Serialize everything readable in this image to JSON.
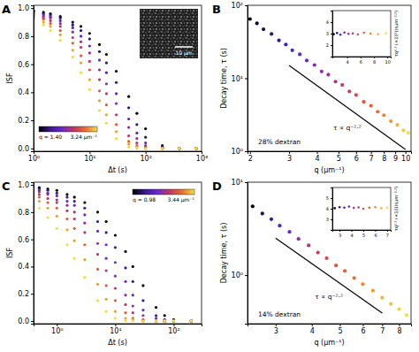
{
  "chart_data": [
    {
      "type": "scatter",
      "panel": "A",
      "log": "x",
      "xlabel": "Δt (s)",
      "ylabel": "ISF",
      "x": [
        1,
        1.5,
        2,
        3,
        5,
        7,
        10,
        15,
        20,
        30,
        50,
        70,
        100,
        200,
        400,
        800
      ],
      "series": [
        {
          "color": "#000000",
          "values": [
            0.98,
            0.97,
            0.96,
            0.94,
            0.9,
            0.87,
            0.82,
            0.74,
            0.67,
            0.55,
            0.37,
            0.25,
            0.14,
            0.02,
            0,
            0
          ]
        },
        {
          "color": "#2a1870",
          "values": [
            0.98,
            0.96,
            0.95,
            0.93,
            0.88,
            0.84,
            0.78,
            0.69,
            0.61,
            0.47,
            0.29,
            0.17,
            0.08,
            0.01,
            0,
            0
          ]
        },
        {
          "color": "#5a28c0",
          "values": [
            0.97,
            0.95,
            0.94,
            0.91,
            0.86,
            0.8,
            0.73,
            0.63,
            0.54,
            0.39,
            0.21,
            0.11,
            0.04,
            0,
            0,
            0
          ]
        },
        {
          "color": "#8a30a0",
          "values": [
            0.96,
            0.94,
            0.93,
            0.89,
            0.83,
            0.76,
            0.68,
            0.56,
            0.46,
            0.32,
            0.15,
            0.07,
            0.02,
            0,
            0,
            0
          ]
        },
        {
          "color": "#c03860",
          "values": [
            0.95,
            0.93,
            0.91,
            0.87,
            0.79,
            0.72,
            0.62,
            0.49,
            0.39,
            0.24,
            0.09,
            0.04,
            0.01,
            0,
            0,
            0
          ]
        },
        {
          "color": "#e05a30",
          "values": [
            0.94,
            0.92,
            0.89,
            0.84,
            0.75,
            0.66,
            0.56,
            0.41,
            0.31,
            0.17,
            0.05,
            0.02,
            0,
            0,
            0,
            0
          ]
        },
        {
          "color": "#eba030",
          "values": [
            0.93,
            0.9,
            0.87,
            0.81,
            0.7,
            0.61,
            0.49,
            0.34,
            0.24,
            0.12,
            0.03,
            0.01,
            0,
            0,
            0,
            0
          ]
        },
        {
          "color": "#f0dc40",
          "values": [
            0.92,
            0.88,
            0.84,
            0.77,
            0.65,
            0.54,
            0.42,
            0.27,
            0.18,
            0.07,
            0.01,
            0,
            0,
            0,
            0,
            0
          ]
        }
      ],
      "xlim": [
        1,
        1000
      ],
      "xticks": [
        {
          "value": 1,
          "label": "10⁰"
        },
        {
          "value": 10,
          "label": "10¹"
        },
        {
          "value": 100,
          "label": "10²"
        },
        {
          "value": 1000,
          "label": "10³"
        }
      ],
      "ylim": [
        -0.02,
        1.02
      ],
      "yticks": [
        {
          "value": 0,
          "label": "0.0"
        },
        0.2,
        0.4,
        0.6,
        0.8,
        {
          "value": 1,
          "label": "1.0"
        }
      ],
      "colorbar": {
        "min": 1.4,
        "max": 3.24,
        "min_label": "q = 1.40",
        "max_label": "3.24 μm⁻¹",
        "colors": [
          "#000000",
          "#3a1a90",
          "#6a2ad0",
          "#c03860",
          "#e87030",
          "#f0e040"
        ]
      },
      "inset_image": {
        "scale_bar_label": "10 μm"
      }
    },
    {
      "type": "scatter",
      "panel": "B",
      "log": true,
      "xlabel": "q (μm⁻¹)",
      "ylabel": "Decay time, τ (s)",
      "x": [
        2.0,
        2.15,
        2.3,
        2.5,
        2.7,
        2.9,
        3.1,
        3.35,
        3.6,
        3.9,
        4.2,
        4.5,
        4.85,
        5.2,
        5.6,
        6.0,
        6.5,
        7.0,
        7.5,
        8.0,
        8.6,
        9.2,
        9.8,
        10.3
      ],
      "values": [
        64.9,
        56.5,
        47.0,
        40.5,
        33.0,
        29.0,
        24.2,
        21.3,
        17.5,
        15.2,
        12.4,
        11.2,
        9.0,
        8.1,
        6.6,
        5.9,
        4.75,
        4.2,
        3.48,
        3.12,
        2.58,
        2.3,
        1.93,
        1.78
      ],
      "colors": [
        "#000000",
        "#100830",
        "#1c1050",
        "#281870",
        "#341c90",
        "#4020b0",
        "#4c24c8",
        "#5a28d0",
        "#6a2cc0",
        "#7a30b0",
        "#8a30a0",
        "#9a3490",
        "#aa3880",
        "#ba3c70",
        "#ca4060",
        "#d84850",
        "#e05440",
        "#e46034",
        "#e87030",
        "#ec8430",
        "#ee9a34",
        "#f0b438",
        "#f0cc3c",
        "#f0e040"
      ],
      "xlim": [
        1.95,
        10.6
      ],
      "xticks": [
        2,
        3,
        4,
        5,
        6,
        7,
        8,
        9,
        10
      ],
      "ylim": [
        1,
        100
      ],
      "yticks": [
        {
          "value": 1,
          "label": "10⁰"
        },
        {
          "value": 10,
          "label": "10¹"
        },
        {
          "value": 100,
          "label": "10²"
        }
      ],
      "fit_line": {
        "x": [
          3,
          10
        ],
        "values": [
          15,
          1.06
        ],
        "label": "τ ∝ q⁻²·²"
      },
      "annotation": "28% dextran",
      "inset": {
        "type": "scatter",
        "ylabel": "τq²·² (×10²)(sμm⁻²·²)",
        "x": [
          2.0,
          2.5,
          3.0,
          3.6,
          4.2,
          4.85,
          5.6,
          6.5,
          7.5,
          8.6,
          9.8
        ],
        "values": [
          2.95,
          3.05,
          2.9,
          3.1,
          2.98,
          3.02,
          2.92,
          3.08,
          3.0,
          2.95,
          3.03
        ],
        "colors": [
          "#000000",
          "#281870",
          "#4020b0",
          "#6a2cc0",
          "#9a3490",
          "#ba3c70",
          "#d84850",
          "#e46034",
          "#ec8430",
          "#f0b438",
          "#f0e040"
        ],
        "xlim": [
          1.8,
          10.5
        ],
        "xticks": [
          4,
          6,
          8,
          10
        ],
        "ylim": [
          1,
          5
        ],
        "yticks": [
          2,
          3,
          4
        ]
      }
    },
    {
      "type": "scatter",
      "panel": "C",
      "log": "x",
      "xlabel": "Δt (s)",
      "ylabel": "ISF",
      "x": [
        0.5,
        0.7,
        1,
        1.5,
        2,
        3,
        5,
        7,
        10,
        15,
        20,
        30,
        50,
        70,
        100,
        200
      ],
      "series": [
        {
          "color": "#000000",
          "values": [
            0.98,
            0.97,
            0.96,
            0.93,
            0.91,
            0.87,
            0.8,
            0.73,
            0.63,
            0.51,
            0.4,
            0.26,
            0.1,
            0.04,
            0.01,
            0
          ]
        },
        {
          "color": "#3a1a90",
          "values": [
            0.97,
            0.96,
            0.94,
            0.91,
            0.88,
            0.83,
            0.73,
            0.65,
            0.54,
            0.39,
            0.29,
            0.15,
            0.04,
            0.01,
            0,
            0
          ]
        },
        {
          "color": "#6a2ad0",
          "values": [
            0.96,
            0.94,
            0.92,
            0.88,
            0.85,
            0.78,
            0.66,
            0.56,
            0.43,
            0.29,
            0.19,
            0.08,
            0.02,
            0,
            0,
            0
          ]
        },
        {
          "color": "#9030a0",
          "values": [
            0.95,
            0.93,
            0.89,
            0.85,
            0.8,
            0.72,
            0.57,
            0.46,
            0.33,
            0.19,
            0.11,
            0.04,
            0,
            0,
            0,
            0
          ]
        },
        {
          "color": "#c03860",
          "values": [
            0.93,
            0.9,
            0.87,
            0.81,
            0.75,
            0.65,
            0.49,
            0.37,
            0.24,
            0.12,
            0.06,
            0.01,
            0,
            0,
            0,
            0
          ]
        },
        {
          "color": "#e06030",
          "values": [
            0.91,
            0.87,
            0.83,
            0.75,
            0.68,
            0.56,
            0.38,
            0.26,
            0.15,
            0.06,
            0.02,
            0,
            0,
            0,
            0,
            0
          ]
        },
        {
          "color": "#eba030",
          "values": [
            0.88,
            0.83,
            0.77,
            0.67,
            0.59,
            0.45,
            0.27,
            0.16,
            0.07,
            0.02,
            0.01,
            0,
            0,
            0,
            0,
            0
          ]
        },
        {
          "color": "#f0e040",
          "values": [
            0.83,
            0.76,
            0.68,
            0.56,
            0.46,
            0.32,
            0.15,
            0.07,
            0.02,
            0,
            0,
            0,
            0,
            0,
            0,
            0
          ]
        }
      ],
      "xlim": [
        0.4,
        300
      ],
      "xticks": [
        {
          "value": 1,
          "label": "10⁰"
        },
        {
          "value": 10,
          "label": "10¹"
        },
        {
          "value": 100,
          "label": "10²"
        }
      ],
      "ylim": [
        -0.02,
        1.02
      ],
      "yticks": [
        {
          "value": 0,
          "label": "0.0"
        },
        0.2,
        0.4,
        0.6,
        0.8,
        {
          "value": 1,
          "label": "1.0"
        }
      ],
      "colorbar": {
        "min": 0.98,
        "max": 3.44,
        "min_label": "q = 0.98",
        "max_label": "3.44 μm⁻¹",
        "colors": [
          "#000000",
          "#3a1a90",
          "#6a2ad0",
          "#c03860",
          "#e87030",
          "#f0e040"
        ]
      }
    },
    {
      "type": "scatter",
      "panel": "D",
      "log": true,
      "xlabel": "q (μm⁻¹)",
      "ylabel": "Decay time, τ (s)",
      "x": [
        2.5,
        2.7,
        2.9,
        3.1,
        3.35,
        3.6,
        3.9,
        4.2,
        4.5,
        4.85,
        5.2,
        5.6,
        6.0,
        6.5,
        7.0,
        7.5,
        8.0,
        8.5
      ],
      "values": [
        5.5,
        4.6,
        4.0,
        3.4,
        2.92,
        2.45,
        2.09,
        1.75,
        1.52,
        1.27,
        1.11,
        0.93,
        0.8,
        0.68,
        0.57,
        0.49,
        0.43,
        0.37
      ],
      "colors": [
        "#000000",
        "#1c1050",
        "#341c90",
        "#4c24c8",
        "#6a2cc0",
        "#8a30a0",
        "#aa3880",
        "#ca4060",
        "#d84850",
        "#e05440",
        "#e46034",
        "#e87030",
        "#ec8430",
        "#ee9a34",
        "#f0b438",
        "#f0c43a",
        "#f0d43e",
        "#f0e040"
      ],
      "xlim": [
        2.4,
        8.8
      ],
      "xticks": [
        3,
        4,
        5,
        6,
        7,
        8
      ],
      "ylim": [
        0.3,
        10
      ],
      "yticks": [
        {
          "value": 1,
          "label": "10⁰"
        },
        {
          "value": 10,
          "label": "10¹"
        }
      ],
      "fit_line": {
        "x": [
          3,
          7
        ],
        "values": [
          2.5,
          0.39
        ],
        "label": "τ ∝ q⁻²·²"
      },
      "annotation": "14% dextran",
      "inset": {
        "type": "scatter",
        "ylabel": "τq²·² (×10)(sμm⁻²·²)",
        "x": [
          2.6,
          3.0,
          3.4,
          3.8,
          4.2,
          4.6,
          5.0,
          5.5,
          6.0,
          6.5,
          7.0
        ],
        "values": [
          4.05,
          4.15,
          4.1,
          4.2,
          4.08,
          4.12,
          4.0,
          4.1,
          4.15,
          4.05,
          4.1
        ],
        "colors": [
          "#000000",
          "#281870",
          "#4020b0",
          "#6a2cc0",
          "#9a3490",
          "#ba3c70",
          "#d84850",
          "#e46034",
          "#ec8430",
          "#f0b438",
          "#f0e040"
        ],
        "xlim": [
          2.4,
          7.3
        ],
        "xticks": [
          3,
          4,
          5,
          6,
          7
        ],
        "ylim": [
          2,
          6
        ],
        "yticks": [
          3,
          4,
          5
        ]
      }
    }
  ]
}
